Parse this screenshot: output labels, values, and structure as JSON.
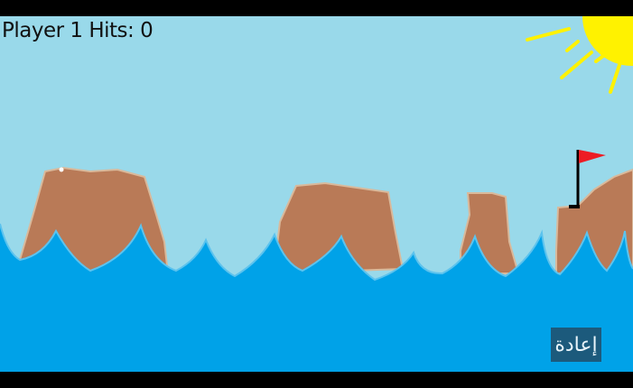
{
  "hud": {
    "player": 1,
    "hits_text": "Player 1 Hits: 0",
    "hits": 0
  },
  "controls": {
    "reset_label": "إعادة"
  },
  "colors": {
    "sky": "#99d9ea",
    "water": "#00a2e8",
    "rock": "#b97a57",
    "sun": "#fff200",
    "flag": "#ed1c24",
    "button": "#1c5a7c"
  }
}
